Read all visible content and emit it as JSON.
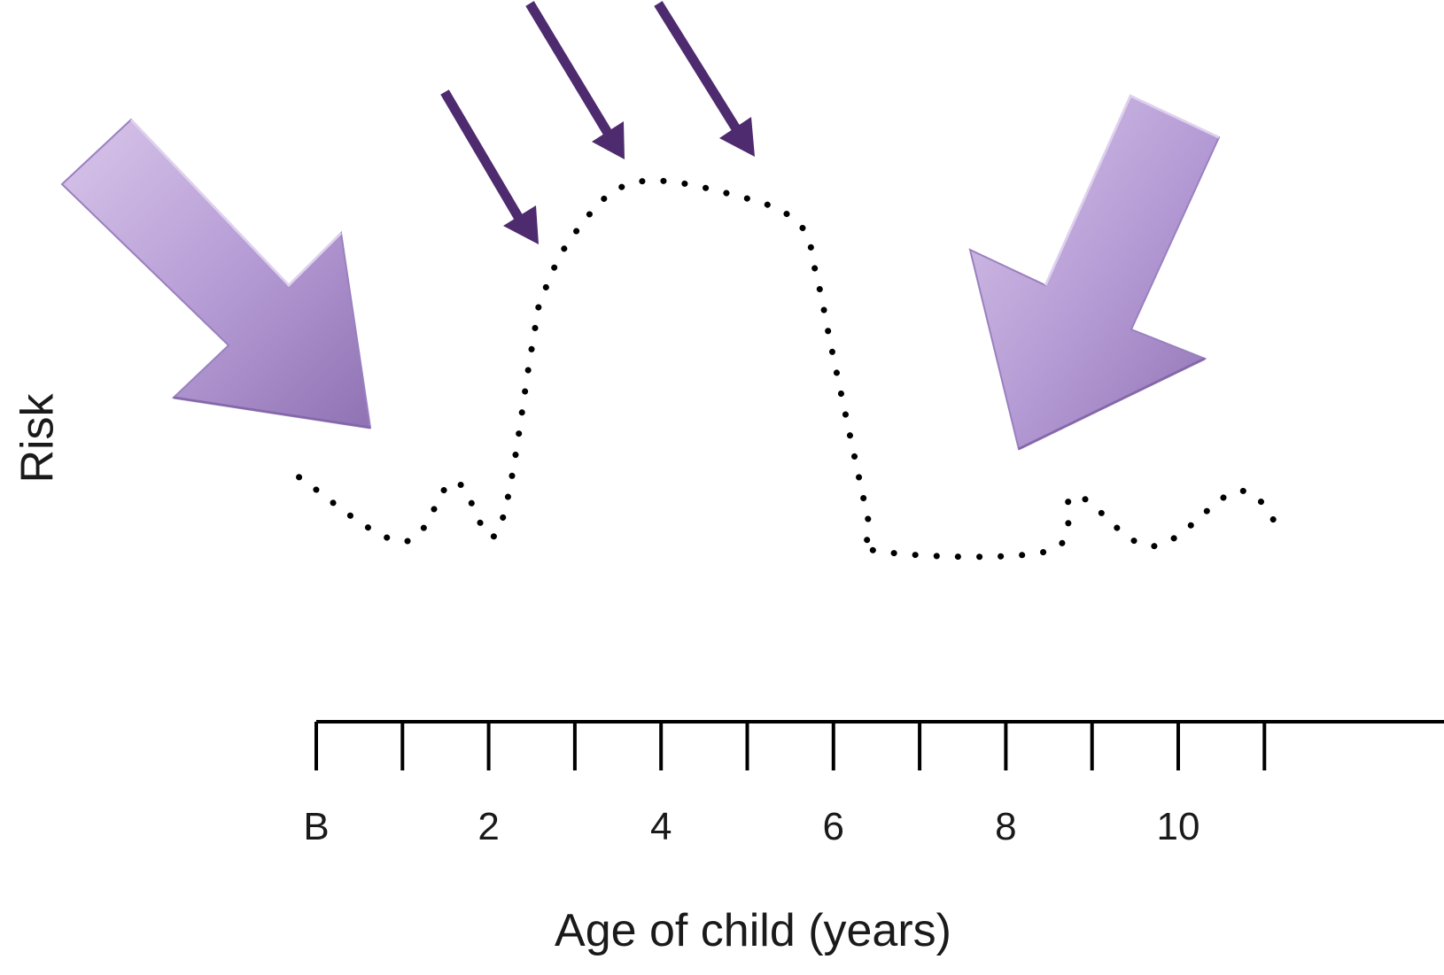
{
  "chart_data": {
    "type": "line",
    "title": "",
    "xlabel": "Age of child (years)",
    "ylabel": "Risk",
    "xlim": [
      0,
      12
    ],
    "ylim": [
      0,
      10
    ],
    "x_tick_labels": [
      {
        "x": 0,
        "label": "B"
      },
      {
        "x": 2,
        "label": "2"
      },
      {
        "x": 4,
        "label": "4"
      },
      {
        "x": 6,
        "label": "6"
      },
      {
        "x": 8,
        "label": "8"
      },
      {
        "x": 10,
        "label": "10"
      }
    ],
    "x_ticks": [
      0,
      1,
      2,
      3,
      4,
      5,
      6,
      7,
      8,
      9,
      10,
      11
    ],
    "series": [
      {
        "line_style": "dotted",
        "color": "#000000",
        "points": [
          [
            -0.2,
            3.1
          ],
          [
            1.0,
            1.7
          ],
          [
            1.6,
            3.0
          ],
          [
            2.1,
            1.9
          ],
          [
            2.5,
            5.9
          ],
          [
            2.6,
            6.9
          ],
          [
            3.0,
            8.4
          ],
          [
            3.7,
            9.5
          ],
          [
            4.9,
            9.2
          ],
          [
            5.6,
            8.6
          ],
          [
            5.8,
            7.5
          ],
          [
            6.0,
            5.7
          ],
          [
            6.4,
            2.2
          ],
          [
            6.5,
            1.5
          ],
          [
            8.5,
            1.5
          ],
          [
            8.8,
            2.7
          ],
          [
            9.7,
            1.6
          ],
          [
            10.7,
            2.8
          ],
          [
            11.2,
            1.9
          ]
        ]
      }
    ],
    "arrows": [
      {
        "kind": "large",
        "color": "#b49ad4"
      },
      {
        "kind": "thin",
        "color": "#4e2a6e"
      },
      {
        "kind": "thin",
        "color": "#4e2a6e"
      },
      {
        "kind": "thin",
        "color": "#4e2a6e"
      },
      {
        "kind": "large",
        "color": "#b49ad4"
      }
    ],
    "grid": false,
    "legend": "none"
  }
}
